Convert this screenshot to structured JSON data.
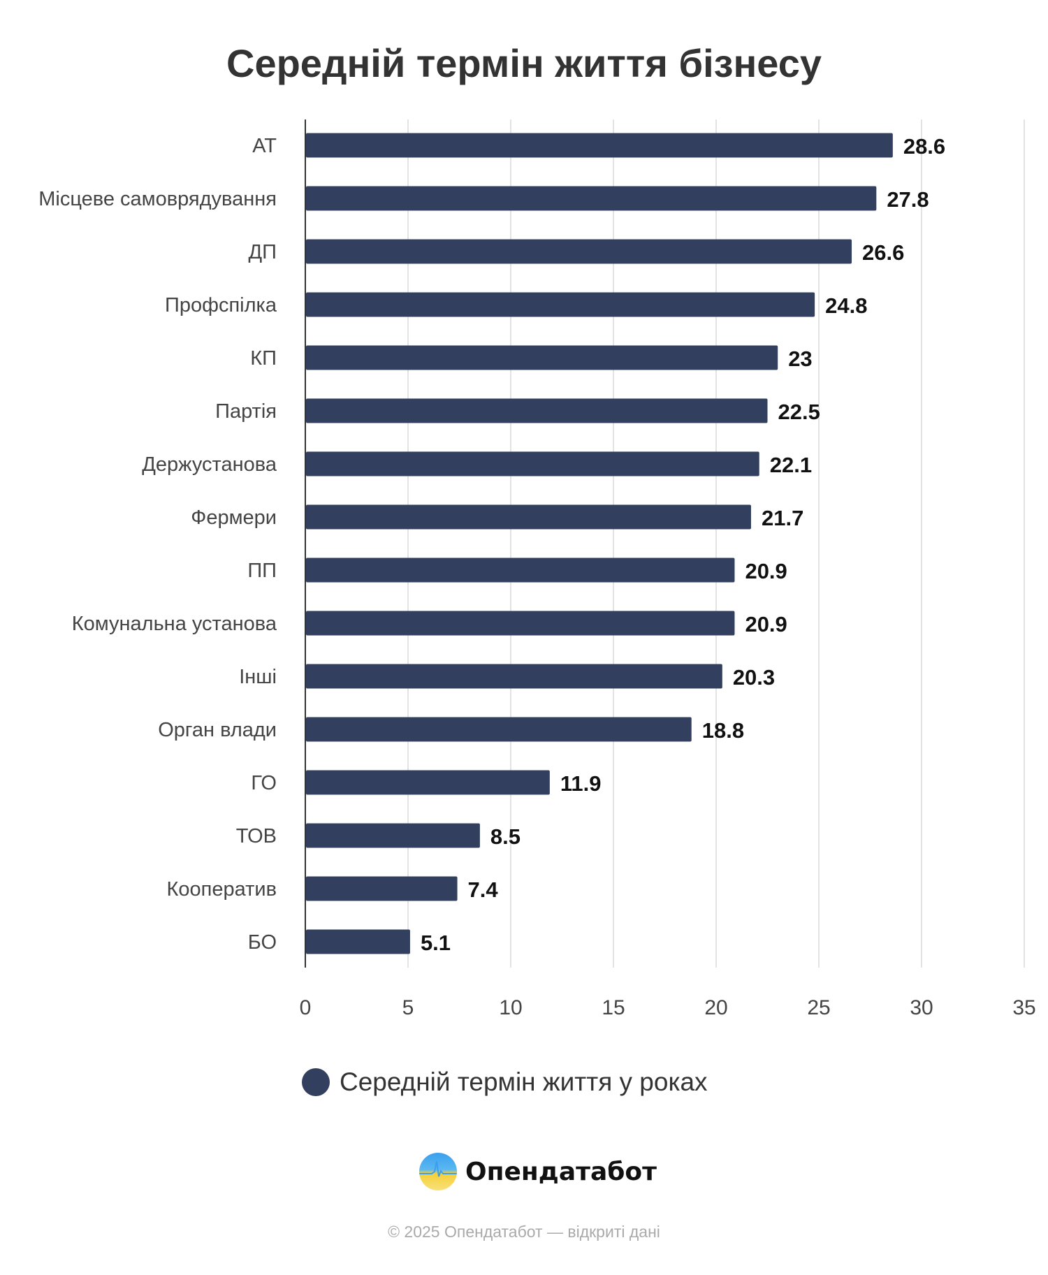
{
  "chart_data": {
    "type": "bar",
    "orientation": "horizontal",
    "title": "Середній термін життя бізнесу",
    "categories": [
      "АТ",
      "Місцеве самоврядування",
      "ДП",
      "Профспілка",
      "КП",
      "Партія",
      "Держустанова",
      "Фермери",
      "ПП",
      "Комунальна установа",
      "Інші",
      "Орган влади",
      "ГО",
      "ТОВ",
      "Кооператив",
      "БО"
    ],
    "series": [
      {
        "name": "Середній термін життя у роках",
        "values": [
          28.6,
          27.8,
          26.6,
          24.8,
          23,
          22.5,
          22.1,
          21.7,
          20.9,
          20.9,
          20.3,
          18.8,
          11.9,
          8.5,
          7.4,
          5.1
        ],
        "color": "#323f5e"
      }
    ],
    "xlim": [
      0,
      35
    ],
    "xticks": [
      0,
      5,
      10,
      15,
      20,
      25,
      30,
      35
    ],
    "grid": true,
    "legend": "bottom"
  },
  "brand": {
    "name": "Опендатабот"
  },
  "footer": "© 2025 Опендатабот — відкриті дані"
}
